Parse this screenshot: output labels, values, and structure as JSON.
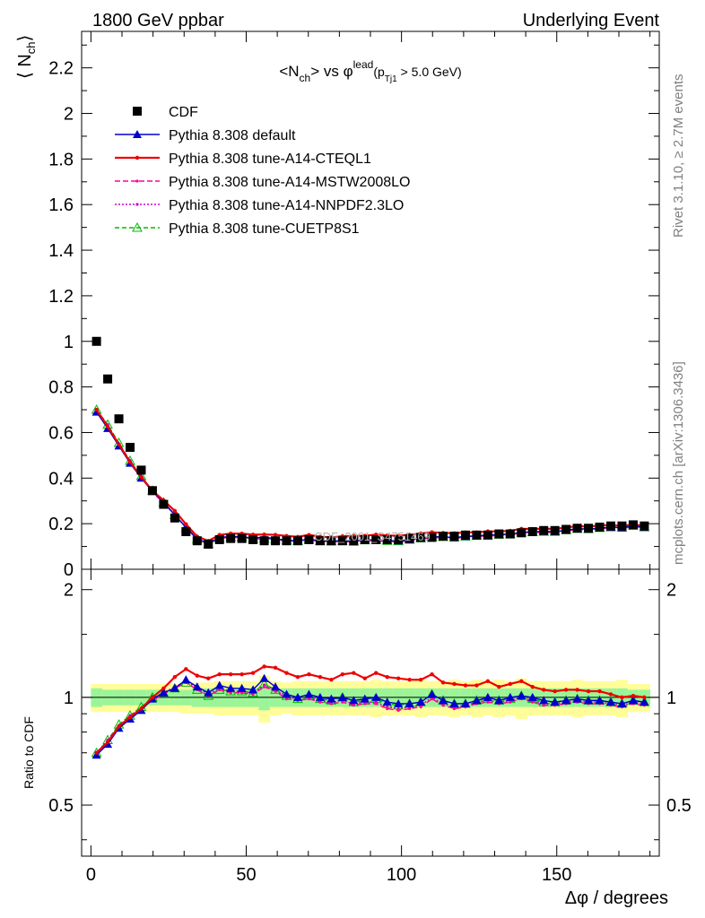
{
  "header": {
    "left": "1800 GeV ppbar",
    "right": "Underlying Event"
  },
  "side_text": {
    "rivet": "Rivet 3.1.10, ≥ 2.7M events",
    "mcplots": "mcplots.cern.ch [arXiv:1306.3436]"
  },
  "watermark": "CDF_2001_S4751469",
  "chart_data": {
    "type": "line",
    "title": {
      "prefix": "<N",
      "sub1": "ch",
      "mid": "> vs φ",
      "sup": "lead",
      "paren_open": "(p",
      "sub2": "Tj1",
      "tail": " > 5.0 GeV)"
    },
    "ylabel": {
      "main": "⟨ N",
      "sub": "ch",
      "close": "⟩"
    },
    "ratio_ylabel": "Ratio to CDF",
    "xlabel": "Δφ / degrees",
    "xlim": [
      -3,
      183
    ],
    "ylim": [
      0,
      2.36
    ],
    "ratio_ylim": [
      0.36,
      2.28
    ],
    "ratio_scale": "log",
    "x_ticks": [
      "0",
      "50",
      "100",
      "150"
    ],
    "y_ticks": [
      "0",
      "0.2",
      "0.4",
      "0.6",
      "0.8",
      "1",
      "1.2",
      "1.4",
      "1.6",
      "1.8",
      "2",
      "2.2"
    ],
    "ratio_ticks": [
      "0.5",
      "1",
      "2"
    ],
    "legend_position": "top-left",
    "x": [
      1.8,
      5.4,
      9.0,
      12.6,
      16.2,
      19.8,
      23.4,
      27.0,
      30.6,
      34.2,
      37.8,
      41.4,
      45.0,
      48.6,
      52.2,
      55.8,
      59.4,
      63.0,
      66.6,
      70.2,
      73.8,
      77.4,
      81.0,
      84.6,
      88.2,
      91.8,
      95.4,
      99.0,
      102.6,
      106.2,
      109.8,
      113.4,
      117.0,
      120.6,
      124.2,
      127.8,
      131.4,
      135.0,
      138.6,
      142.2,
      145.8,
      149.4,
      153.0,
      156.6,
      160.2,
      163.8,
      167.4,
      171.0,
      174.6,
      178.2
    ],
    "series": [
      {
        "name": "CDF",
        "style": "data",
        "color": "#000000",
        "values": [
          1.0,
          0.835,
          0.66,
          0.535,
          0.435,
          0.345,
          0.285,
          0.225,
          0.165,
          0.125,
          0.11,
          0.13,
          0.135,
          0.135,
          0.13,
          0.125,
          0.125,
          0.125,
          0.125,
          0.13,
          0.125,
          0.125,
          0.125,
          0.125,
          0.13,
          0.13,
          0.13,
          0.13,
          0.135,
          0.14,
          0.14,
          0.145,
          0.145,
          0.15,
          0.15,
          0.15,
          0.155,
          0.155,
          0.16,
          0.165,
          0.17,
          0.17,
          0.175,
          0.18,
          0.18,
          0.185,
          0.19,
          0.19,
          0.195,
          0.19
        ]
      },
      {
        "name": "Pythia 8.308 default",
        "style": "solid-triangle",
        "color": "#0000cc",
        "ratio": [
          0.69,
          0.74,
          0.82,
          0.87,
          0.92,
          0.99,
          1.03,
          1.06,
          1.12,
          1.07,
          1.03,
          1.08,
          1.06,
          1.06,
          1.05,
          1.13,
          1.07,
          1.02,
          1.0,
          1.02,
          1.0,
          0.99,
          1.0,
          0.98,
          0.99,
          1.0,
          0.97,
          0.96,
          0.96,
          0.97,
          1.02,
          0.98,
          0.96,
          0.96,
          0.98,
          1.0,
          0.98,
          1.0,
          1.01,
          1.0,
          0.98,
          0.97,
          0.98,
          0.99,
          0.98,
          0.98,
          0.97,
          0.96,
          0.98,
          0.97
        ]
      },
      {
        "name": "Pythia 8.308 tune-A14-CTEQL1",
        "style": "solid-thick",
        "color": "#ee0000",
        "ratio": [
          0.7,
          0.75,
          0.83,
          0.88,
          0.93,
          1.0,
          1.06,
          1.14,
          1.2,
          1.15,
          1.13,
          1.16,
          1.16,
          1.16,
          1.17,
          1.22,
          1.21,
          1.17,
          1.14,
          1.16,
          1.14,
          1.12,
          1.16,
          1.17,
          1.13,
          1.17,
          1.14,
          1.13,
          1.12,
          1.12,
          1.16,
          1.1,
          1.09,
          1.08,
          1.08,
          1.11,
          1.07,
          1.09,
          1.11,
          1.07,
          1.05,
          1.04,
          1.05,
          1.05,
          1.04,
          1.04,
          1.02,
          1.0,
          1.01,
          1.0
        ]
      },
      {
        "name": "Pythia 8.308 tune-A14-MSTW2008LO",
        "style": "dashed",
        "color": "#ff0099",
        "ratio": [
          0.7,
          0.75,
          0.83,
          0.88,
          0.93,
          0.98,
          1.02,
          1.06,
          1.1,
          1.05,
          1.01,
          1.05,
          1.03,
          1.03,
          1.02,
          1.07,
          1.04,
          0.99,
          0.98,
          0.99,
          0.97,
          0.96,
          0.97,
          0.95,
          0.96,
          0.96,
          0.93,
          0.92,
          0.93,
          0.94,
          0.99,
          0.95,
          0.93,
          0.94,
          0.96,
          0.97,
          0.96,
          0.97,
          0.99,
          0.97,
          0.95,
          0.95,
          0.96,
          0.97,
          0.96,
          0.96,
          0.95,
          0.94,
          0.96,
          0.95
        ]
      },
      {
        "name": "Pythia 8.308 tune-A14-NNPDF2.3LO",
        "style": "dotted",
        "color": "#cc00cc",
        "ratio": [
          0.7,
          0.76,
          0.83,
          0.89,
          0.93,
          0.99,
          1.03,
          1.07,
          1.11,
          1.06,
          1.02,
          1.06,
          1.04,
          1.04,
          1.03,
          1.08,
          1.05,
          1.0,
          0.99,
          1.0,
          0.98,
          0.97,
          0.98,
          0.96,
          0.97,
          0.97,
          0.94,
          0.93,
          0.94,
          0.95,
          1.0,
          0.96,
          0.94,
          0.95,
          0.97,
          0.98,
          0.97,
          0.98,
          1.0,
          0.98,
          0.96,
          0.96,
          0.97,
          0.98,
          0.97,
          0.97,
          0.96,
          0.95,
          0.97,
          0.96
        ]
      },
      {
        "name": "Pythia 8.308 tune-CUETP8S1",
        "style": "dashed-open-triangle",
        "color": "#00bb00",
        "ratio": [
          0.7,
          0.76,
          0.84,
          0.89,
          0.94,
          1.0,
          1.03,
          1.06,
          1.1,
          1.05,
          1.01,
          1.05,
          1.04,
          1.04,
          1.03,
          1.09,
          1.05,
          1.01,
          0.99,
          1.01,
          0.99,
          0.98,
          1.0,
          0.97,
          0.98,
          0.99,
          0.96,
          0.95,
          0.96,
          0.97,
          1.02,
          0.98,
          0.96,
          0.96,
          0.98,
          0.99,
          0.98,
          0.99,
          1.01,
          0.99,
          0.97,
          0.97,
          0.98,
          0.99,
          0.98,
          0.98,
          0.97,
          0.96,
          0.98,
          0.97
        ]
      }
    ],
    "uncertainty": {
      "stat_color": "#9bf598",
      "total_color": "#fffd9a",
      "stat_rel": [
        0.06,
        0.05,
        0.05,
        0.05,
        0.05,
        0.05,
        0.05,
        0.05,
        0.05,
        0.06,
        0.06,
        0.06,
        0.06,
        0.06,
        0.06,
        0.08,
        0.06,
        0.06,
        0.06,
        0.06,
        0.06,
        0.06,
        0.06,
        0.06,
        0.06,
        0.06,
        0.06,
        0.06,
        0.06,
        0.06,
        0.06,
        0.06,
        0.06,
        0.06,
        0.06,
        0.06,
        0.06,
        0.06,
        0.06,
        0.06,
        0.06,
        0.06,
        0.06,
        0.06,
        0.06,
        0.06,
        0.06,
        0.06,
        0.05,
        0.05
      ],
      "total_rel": [
        0.09,
        0.09,
        0.09,
        0.09,
        0.09,
        0.09,
        0.09,
        0.09,
        0.1,
        0.1,
        0.1,
        0.11,
        0.11,
        0.11,
        0.11,
        0.15,
        0.11,
        0.1,
        0.11,
        0.11,
        0.11,
        0.11,
        0.11,
        0.11,
        0.11,
        0.12,
        0.11,
        0.11,
        0.11,
        0.12,
        0.11,
        0.11,
        0.12,
        0.11,
        0.12,
        0.11,
        0.12,
        0.11,
        0.13,
        0.11,
        0.11,
        0.11,
        0.11,
        0.12,
        0.11,
        0.11,
        0.11,
        0.12,
        0.09,
        0.09
      ]
    }
  }
}
